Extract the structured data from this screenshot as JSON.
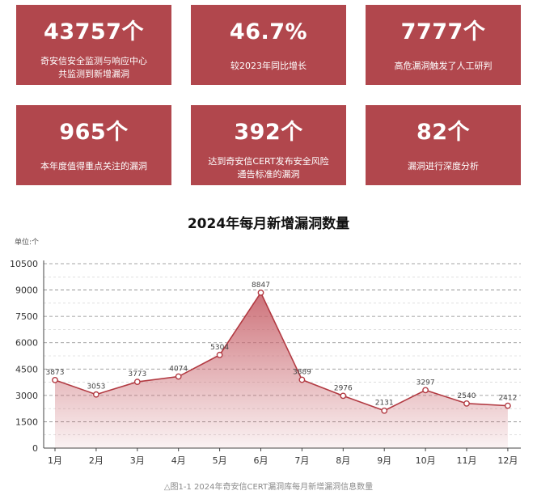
{
  "stats": [
    {
      "value": "43757个",
      "desc": [
        "奇安信安全监测与响应中心",
        "共监测到新增漏洞"
      ]
    },
    {
      "value": "46.7%",
      "desc": [
        "较2023年同比增长"
      ]
    },
    {
      "value": "7777个",
      "desc": [
        "高危漏洞触发了人工研判"
      ]
    },
    {
      "value": "965个",
      "desc": [
        "本年度值得重点关注的漏洞"
      ]
    },
    {
      "value": "392个",
      "desc": [
        "达到奇安信CERT发布安全风险",
        "通告标准的漏洞"
      ]
    },
    {
      "value": "82个",
      "desc": [
        "漏洞进行深度分析"
      ]
    }
  ],
  "colors": {
    "card": "#b1474d",
    "line": "#b23a42",
    "area_top": "#c8636b",
    "grid": "#888888"
  },
  "chart_data": {
    "type": "area",
    "title": "2024年每月新增漏洞数量",
    "unit": "单位:个",
    "categories": [
      "1月",
      "2月",
      "3月",
      "4月",
      "5月",
      "6月",
      "7月",
      "8月",
      "9月",
      "10月",
      "11月",
      "12月"
    ],
    "values": [
      3873,
      3053,
      3773,
      4074,
      5304,
      8847,
      3889,
      2976,
      2131,
      3297,
      2540,
      2412
    ],
    "yticks": [
      0,
      1500,
      3000,
      4500,
      6000,
      7500,
      9000,
      10500
    ],
    "ylim": [
      0,
      10500
    ],
    "grid": true
  },
  "caption": "△图1-1 2024年奇安信CERT漏洞库每月新增漏洞信息数量"
}
